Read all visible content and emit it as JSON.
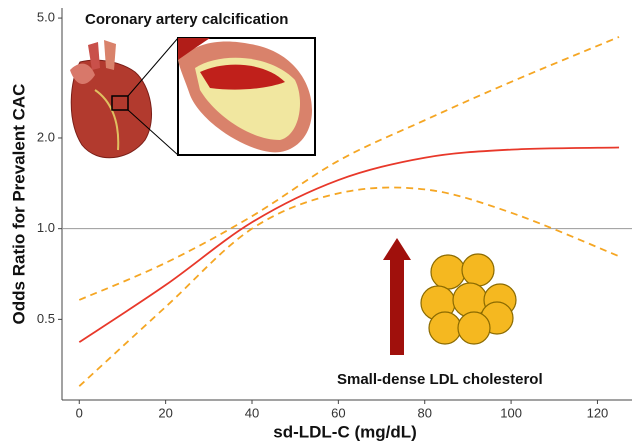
{
  "chart_data": {
    "type": "line",
    "title_annotations": [
      "Coronary artery calcification",
      "Small-dense LDL cholesterol"
    ],
    "xlabel": "sd-LDL-C (mg/dL)",
    "ylabel": "Odds Ratio for Prevalent CAC",
    "x": [
      0,
      20,
      40,
      60,
      80,
      100,
      125
    ],
    "series": [
      {
        "color": "#e8382a",
        "dash": false,
        "values": [
          0.42,
          0.65,
          1.05,
          1.45,
          1.72,
          1.83,
          1.86
        ]
      },
      {
        "color": "#f5a623",
        "dash": true,
        "values": [
          0.58,
          0.77,
          1.1,
          1.68,
          2.29,
          3.07,
          4.33
        ]
      },
      {
        "color": "#f5a623",
        "dash": true,
        "values": [
          0.3,
          0.55,
          1.0,
          1.31,
          1.35,
          1.13,
          0.81
        ]
      }
    ],
    "xlim": [
      -4,
      128
    ],
    "xticks": [
      0,
      20,
      40,
      60,
      80,
      100,
      120
    ],
    "ylim": [
      0.27,
      5.4
    ],
    "ylog": true,
    "yticks": [
      0.5,
      {
        "value": 1,
        "label": "1.0"
      },
      {
        "value": 2,
        "label": "2.0"
      },
      {
        "value": 5,
        "label": "5.0"
      }
    ],
    "hline": 1
  }
}
